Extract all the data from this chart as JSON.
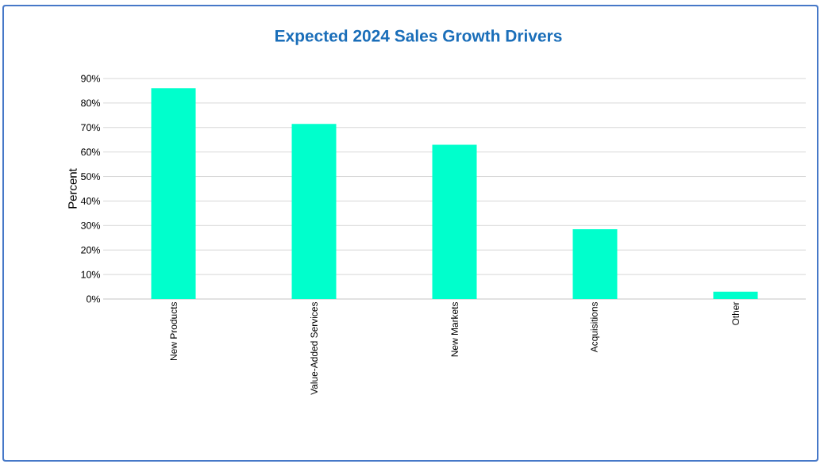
{
  "chart_data": {
    "type": "bar",
    "title": "Expected 2024 Sales Growth Drivers",
    "ylabel": "Percent",
    "categories": [
      "New Products",
      "Value-Added Services",
      "New Markets",
      "Acquisitions",
      "Other"
    ],
    "values": [
      86,
      71.5,
      63,
      28.5,
      3
    ],
    "color": "#00ffcc",
    "ylim": [
      0,
      90
    ],
    "yticks": [
      {
        "value": 0,
        "label": "0%"
      },
      {
        "value": 10,
        "label": "10%"
      },
      {
        "value": 20,
        "label": "20%"
      },
      {
        "value": 30,
        "label": "30%"
      },
      {
        "value": 40,
        "label": "40%"
      },
      {
        "value": 50,
        "label": "50%"
      },
      {
        "value": 60,
        "label": "60%"
      },
      {
        "value": 70,
        "label": "70%"
      },
      {
        "value": 80,
        "label": "80%"
      },
      {
        "value": 90,
        "label": "90%"
      }
    ],
    "grid": "y"
  }
}
